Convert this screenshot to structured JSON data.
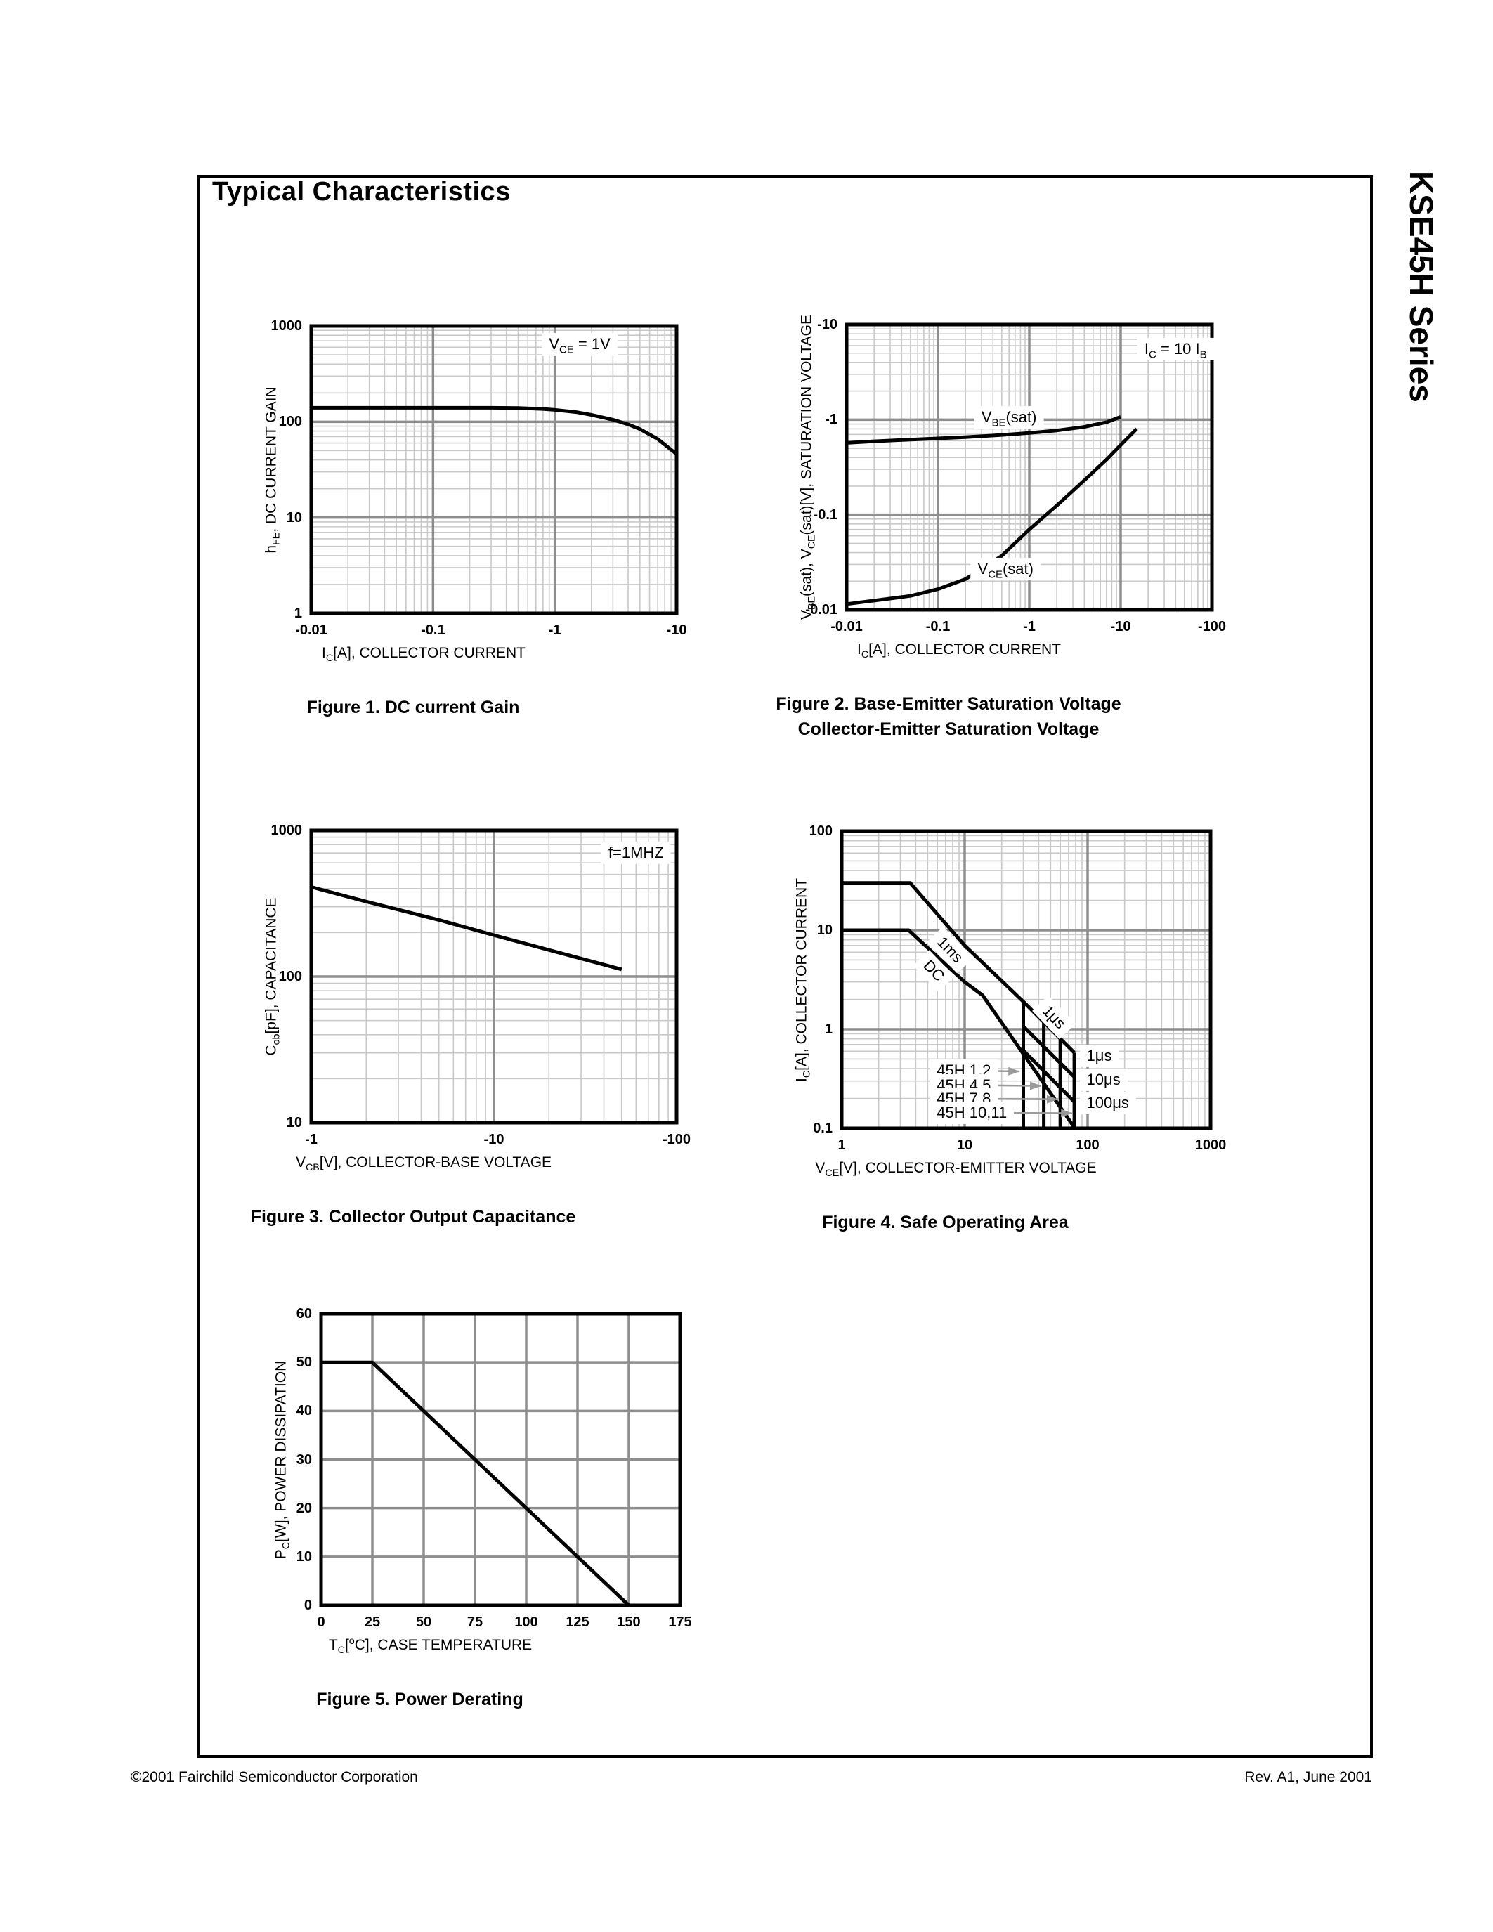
{
  "page": {
    "title": "Typical Characteristics",
    "side_label": "KSE45H Series",
    "footer_left": "©2001 Fairchild Semiconductor Corporation",
    "footer_right": "Rev. A1, June 2001"
  },
  "colors": {
    "grid_major": "#8e8e8e",
    "grid_minor": "#c9c9c9",
    "curve": "#000000",
    "arrow": "#9a9a9a",
    "border": "#000000"
  },
  "chart_data": [
    {
      "id": "fig1",
      "type": "line",
      "caption": [
        "Figure 1. DC current Gain"
      ],
      "xlabel": [
        {
          "t": "I"
        },
        {
          "t": "C",
          "sub": true
        },
        {
          "t": "[A], COLLECTOR CURRENT"
        }
      ],
      "ylabel": [
        {
          "t": "h"
        },
        {
          "t": "FE",
          "sub": true
        },
        {
          "t": ", DC CURRENT GAIN"
        }
      ],
      "x": {
        "scale": "log",
        "min": 0.01,
        "max": 10,
        "ticks": [
          {
            "v": 0.01,
            "t": "-0.01"
          },
          {
            "v": 0.1,
            "t": "-0.1"
          },
          {
            "v": 1,
            "t": "-1"
          },
          {
            "v": 10,
            "t": "-10"
          }
        ]
      },
      "y": {
        "scale": "log",
        "min": 1,
        "max": 1000,
        "ticks": [
          {
            "v": 1,
            "t": "1"
          },
          {
            "v": 10,
            "t": "10"
          },
          {
            "v": 100,
            "t": "100"
          },
          {
            "v": 1000,
            "t": "1000"
          }
        ]
      },
      "series": [
        {
          "name": "hFE",
          "points": [
            [
              0.01,
              140
            ],
            [
              0.1,
              140
            ],
            [
              0.3,
              140
            ],
            [
              0.5,
              139
            ],
            [
              0.8,
              136
            ],
            [
              1,
              133
            ],
            [
              1.5,
              126
            ],
            [
              2,
              118
            ],
            [
              3,
              105
            ],
            [
              4,
              94
            ],
            [
              5,
              84
            ],
            [
              7,
              66
            ],
            [
              10,
              46
            ]
          ]
        }
      ],
      "annotations": [
        {
          "x": 1.6,
          "y": 640,
          "align": "center",
          "bg": true,
          "parts": [
            {
              "t": "V"
            },
            {
              "t": "CE",
              "sub": true
            },
            {
              "t": " = 1V"
            }
          ]
        }
      ],
      "arrows": []
    },
    {
      "id": "fig2",
      "type": "line",
      "caption": [
        "Figure 2. Base-Emitter Saturation Voltage",
        "Collector-Emitter Saturation Voltage"
      ],
      "xlabel": [
        {
          "t": "I"
        },
        {
          "t": "C",
          "sub": true
        },
        {
          "t": "[A], COLLECTOR CURRENT"
        }
      ],
      "ylabel": [
        {
          "t": "V"
        },
        {
          "t": "BE",
          "sub": true
        },
        {
          "t": "(sat), V"
        },
        {
          "t": "CE",
          "sub": true
        },
        {
          "t": "(sat)[V], SATURATION VOLTAGE"
        }
      ],
      "x": {
        "scale": "log",
        "min": 0.01,
        "max": 100,
        "ticks": [
          {
            "v": 0.01,
            "t": "-0.01"
          },
          {
            "v": 0.1,
            "t": "-0.1"
          },
          {
            "v": 1,
            "t": "-1"
          },
          {
            "v": 10,
            "t": "-10"
          },
          {
            "v": 100,
            "t": "-100"
          }
        ]
      },
      "y": {
        "scale": "log",
        "min": 0.01,
        "max": 10,
        "ticks": [
          {
            "v": 0.01,
            "t": "-0.01"
          },
          {
            "v": 0.1,
            "t": "-0.1"
          },
          {
            "v": 1,
            "t": "-1"
          },
          {
            "v": 10,
            "t": "-10"
          }
        ]
      },
      "series": [
        {
          "name": "VBE(sat)",
          "points": [
            [
              0.01,
              0.57
            ],
            [
              0.02,
              0.592
            ],
            [
              0.05,
              0.617
            ],
            [
              0.1,
              0.635
            ],
            [
              0.2,
              0.655
            ],
            [
              0.5,
              0.69
            ],
            [
              1,
              0.725
            ],
            [
              2,
              0.77
            ],
            [
              4,
              0.84
            ],
            [
              7,
              0.94
            ],
            [
              10,
              1.07
            ]
          ]
        },
        {
          "name": "VCE(sat)",
          "points": [
            [
              0.01,
              0.0115
            ],
            [
              0.02,
              0.0125
            ],
            [
              0.05,
              0.014
            ],
            [
              0.1,
              0.0165
            ],
            [
              0.2,
              0.021
            ],
            [
              0.5,
              0.037
            ],
            [
              1,
              0.07
            ],
            [
              2,
              0.125
            ],
            [
              4,
              0.23
            ],
            [
              7,
              0.38
            ],
            [
              10,
              0.54
            ],
            [
              15,
              0.8
            ]
          ]
        }
      ],
      "annotations": [
        {
          "x": 40,
          "y": 5.5,
          "align": "center",
          "bg": true,
          "parts": [
            {
              "t": "I"
            },
            {
              "t": "C",
              "sub": true
            },
            {
              "t": " = 10 I"
            },
            {
              "t": "B",
              "sub": true
            }
          ]
        },
        {
          "x": 0.6,
          "y": 1.05,
          "align": "center",
          "bg": true,
          "parts": [
            {
              "t": "V"
            },
            {
              "t": "BE",
              "sub": true
            },
            {
              "t": "(sat)"
            }
          ]
        },
        {
          "x": 0.55,
          "y": 0.027,
          "align": "center",
          "bg": true,
          "parts": [
            {
              "t": "V"
            },
            {
              "t": "CE",
              "sub": true
            },
            {
              "t": "(sat)"
            }
          ]
        }
      ],
      "arrows": []
    },
    {
      "id": "fig3",
      "type": "line",
      "caption": [
        "Figure 3. Collector Output Capacitance"
      ],
      "xlabel": [
        {
          "t": "V"
        },
        {
          "t": "CB",
          "sub": true
        },
        {
          "t": "[V], COLLECTOR-BASE VOLTAGE"
        }
      ],
      "ylabel": [
        {
          "t": "C"
        },
        {
          "t": "ob",
          "sub": true
        },
        {
          "t": "[pF], CAPACITANCE"
        }
      ],
      "x": {
        "scale": "log",
        "min": 1,
        "max": 100,
        "ticks": [
          {
            "v": 1,
            "t": "-1"
          },
          {
            "v": 10,
            "t": "-10"
          },
          {
            "v": 100,
            "t": "-100"
          }
        ]
      },
      "y": {
        "scale": "log",
        "min": 10,
        "max": 1000,
        "ticks": [
          {
            "v": 10,
            "t": "10"
          },
          {
            "v": 100,
            "t": "100"
          },
          {
            "v": 1000,
            "t": "1000"
          }
        ]
      },
      "series": [
        {
          "name": "Cob",
          "points": [
            [
              1,
              410
            ],
            [
              2,
              326
            ],
            [
              5,
              244
            ],
            [
              10,
              192
            ],
            [
              20,
              152
            ],
            [
              50,
              112
            ]
          ]
        }
      ],
      "annotations": [
        {
          "x": 60,
          "y": 700,
          "align": "center",
          "bg": true,
          "parts": [
            {
              "t": "f=1MHZ"
            }
          ]
        }
      ],
      "arrows": []
    },
    {
      "id": "fig4",
      "type": "line",
      "caption": [
        "Figure 4. Safe Operating Area"
      ],
      "xlabel": [
        {
          "t": "V"
        },
        {
          "t": "CE",
          "sub": true
        },
        {
          "t": "[V], COLLECTOR-EMITTER VOLTAGE"
        }
      ],
      "ylabel": [
        {
          "t": "I"
        },
        {
          "t": "C",
          "sub": true
        },
        {
          "t": "[A], COLLECTOR CURRENT"
        }
      ],
      "x": {
        "scale": "log",
        "min": 1,
        "max": 1000,
        "ticks": [
          {
            "v": 1,
            "t": "1"
          },
          {
            "v": 10,
            "t": "10"
          },
          {
            "v": 100,
            "t": "100"
          },
          {
            "v": 1000,
            "t": "1000"
          }
        ]
      },
      "y": {
        "scale": "log",
        "min": 0.1,
        "max": 100,
        "ticks": [
          {
            "v": 0.1,
            "t": "0.1"
          },
          {
            "v": 1,
            "t": "1"
          },
          {
            "v": 10,
            "t": "10"
          },
          {
            "v": 100,
            "t": "100"
          }
        ]
      },
      "series": [
        {
          "name": "1ms",
          "points": [
            [
              1,
              30
            ],
            [
              3.6,
              30
            ],
            [
              10,
              7
            ],
            [
              30,
              1.9
            ],
            [
              78,
              0.58
            ]
          ]
        },
        {
          "name": "DC",
          "points": [
            [
              1,
              10
            ],
            [
              3.5,
              10
            ],
            [
              10,
              3.0
            ],
            [
              14,
              2.2
            ],
            [
              78,
              0.102
            ]
          ]
        },
        {
          "name": "10us-limit",
          "points": [
            [
              30,
              1.07
            ],
            [
              78,
              0.33
            ]
          ]
        },
        {
          "name": "100us-limit",
          "points": [
            [
              30,
              0.61
            ],
            [
              78,
              0.185
            ]
          ]
        },
        {
          "name": "45H1-2-voltage-limit",
          "points": [
            [
              30,
              1.9
            ],
            [
              30,
              0.1
            ]
          ]
        },
        {
          "name": "45H4-5-voltage-limit",
          "points": [
            [
              44,
              1.18
            ],
            [
              44,
              0.1
            ]
          ]
        },
        {
          "name": "45H7-8-voltage-limit",
          "points": [
            [
              60,
              0.8
            ],
            [
              60,
              0.1
            ]
          ]
        },
        {
          "name": "45H10-11-voltage-limit",
          "points": [
            [
              78,
              0.58
            ],
            [
              78,
              0.1
            ]
          ]
        }
      ],
      "annotations": [
        {
          "x": 7.6,
          "y": 6.3,
          "align": "center",
          "rot": 46,
          "bg": true,
          "parts": [
            {
              "t": "1ms"
            }
          ]
        },
        {
          "x": 5.6,
          "y": 3.9,
          "align": "center",
          "rot": 46,
          "bg": true,
          "parts": [
            {
              "t": "DC"
            }
          ]
        },
        {
          "x": 53,
          "y": 1.32,
          "align": "center",
          "rot": 46,
          "bg": true,
          "parts": [
            {
              "t": "1μs"
            }
          ]
        },
        {
          "x": 86,
          "y": 0.54,
          "align": "left",
          "bg": true,
          "parts": [
            {
              "t": "1μs"
            }
          ]
        },
        {
          "x": 86,
          "y": 0.31,
          "align": "left",
          "bg": true,
          "parts": [
            {
              "t": "10μs"
            }
          ]
        },
        {
          "x": 86,
          "y": 0.18,
          "align": "left",
          "bg": true,
          "parts": [
            {
              "t": "100μs"
            }
          ]
        },
        {
          "x": 5.2,
          "y": 0.38,
          "align": "left",
          "bg": true,
          "parts": [
            {
              "t": "45H 1,2"
            }
          ]
        },
        {
          "x": 5.2,
          "y": 0.272,
          "align": "left",
          "bg": true,
          "parts": [
            {
              "t": "45H 4,5"
            }
          ]
        },
        {
          "x": 5.2,
          "y": 0.198,
          "align": "left",
          "bg": true,
          "parts": [
            {
              "t": "45H 7,8"
            }
          ]
        },
        {
          "x": 5.2,
          "y": 0.143,
          "align": "left",
          "bg": true,
          "parts": [
            {
              "t": "45H 10,11"
            }
          ]
        }
      ],
      "arrows": [
        {
          "x1": 13,
          "y1": 0.38,
          "x2": 28,
          "y2": 0.375
        },
        {
          "x1": 14.5,
          "y1": 0.272,
          "x2": 42,
          "y2": 0.268
        },
        {
          "x1": 14.5,
          "y1": 0.198,
          "x2": 57.5,
          "y2": 0.196
        },
        {
          "x1": 19,
          "y1": 0.143,
          "x2": 75,
          "y2": 0.142
        }
      ]
    },
    {
      "id": "fig5",
      "type": "line",
      "caption": [
        "Figure 5. Power Derating"
      ],
      "xlabel": [
        {
          "t": "T"
        },
        {
          "t": "C",
          "sub": true
        },
        {
          "t": "["
        },
        {
          "t": "o",
          "sup": true
        },
        {
          "t": "C], CASE TEMPERATURE"
        }
      ],
      "ylabel": [
        {
          "t": "P"
        },
        {
          "t": "C",
          "sub": true
        },
        {
          "t": "[W], POWER DISSIPATION"
        }
      ],
      "x": {
        "scale": "linear",
        "min": 0,
        "max": 175,
        "step": 25,
        "ticks": [
          {
            "v": 0,
            "t": "0"
          },
          {
            "v": 25,
            "t": "25"
          },
          {
            "v": 50,
            "t": "50"
          },
          {
            "v": 75,
            "t": "75"
          },
          {
            "v": 100,
            "t": "100"
          },
          {
            "v": 125,
            "t": "125"
          },
          {
            "v": 150,
            "t": "150"
          },
          {
            "v": 175,
            "t": "175"
          }
        ]
      },
      "y": {
        "scale": "linear",
        "min": 0,
        "max": 60,
        "step": 10,
        "ticks": [
          {
            "v": 0,
            "t": "0"
          },
          {
            "v": 10,
            "t": "10"
          },
          {
            "v": 20,
            "t": "20"
          },
          {
            "v": 30,
            "t": "30"
          },
          {
            "v": 40,
            "t": "40"
          },
          {
            "v": 50,
            "t": "50"
          },
          {
            "v": 60,
            "t": "60"
          }
        ]
      },
      "series": [
        {
          "name": "power-derating",
          "points": [
            [
              0,
              50
            ],
            [
              25,
              50
            ],
            [
              150,
              0
            ]
          ]
        }
      ],
      "annotations": [],
      "arrows": []
    }
  ]
}
